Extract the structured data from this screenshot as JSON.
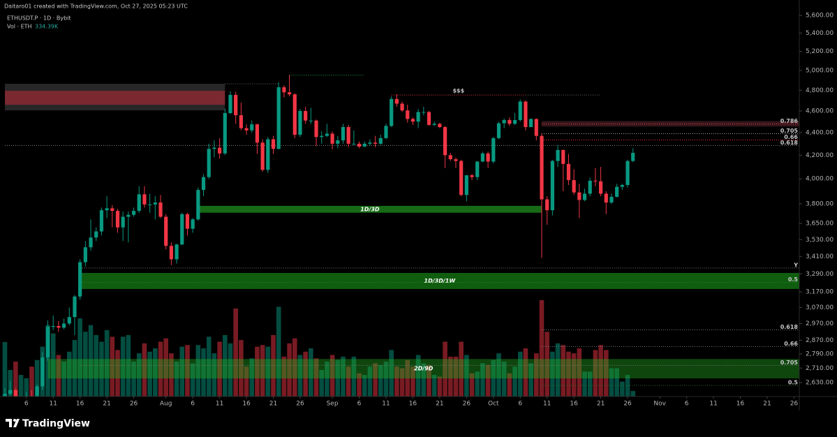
{
  "chart_data": {
    "type": "candlestick",
    "credit": "Daitaro01 created with TradingView.com, Oct 27, 2025 05:23 UTC",
    "symbol": "ETHUSDT.P · 1D · Bybit",
    "logo": "TradingView",
    "up_color": "#089981",
    "down_color": "#f23645",
    "log_scale": true,
    "ylim": [
      2556,
      5780
    ],
    "yticks": [
      {
        "value": 5600,
        "label": "5,600.00"
      },
      {
        "value": 5400,
        "label": "5,400.00"
      },
      {
        "value": 5200,
        "label": "5,200.00"
      },
      {
        "value": 5000,
        "label": "5,000.00"
      },
      {
        "value": 4800,
        "label": "4,800.00"
      },
      {
        "value": 4600,
        "label": "4,600.00"
      },
      {
        "value": 4400,
        "label": "4,400.00"
      },
      {
        "value": 4200,
        "label": "4,200.00"
      },
      {
        "value": 4000,
        "label": "4,000.00"
      },
      {
        "value": 3800,
        "label": "3,800.00"
      },
      {
        "value": 3650,
        "label": "3,650.00"
      },
      {
        "value": 3530,
        "label": "3,530.00"
      },
      {
        "value": 3410,
        "label": "3,410.00"
      },
      {
        "value": 3290,
        "label": "3,290.00"
      },
      {
        "value": 3170,
        "label": "3,170.00"
      },
      {
        "value": 3070,
        "label": "3,070.00"
      },
      {
        "value": 2970,
        "label": "2,970.00"
      },
      {
        "value": 2870,
        "label": "2,870.00"
      },
      {
        "value": 2790,
        "label": "2,790.00"
      },
      {
        "value": 2710,
        "label": "2,710.00"
      },
      {
        "value": 2630,
        "label": "2,630.00"
      }
    ],
    "xticks": [
      {
        "value": "Jul 6",
        "label": "6"
      },
      {
        "value": "Jul 11",
        "label": "11"
      },
      {
        "value": "Jul 16",
        "label": "16"
      },
      {
        "value": "Jul 21",
        "label": "21"
      },
      {
        "value": "Jul 26",
        "label": "26"
      },
      {
        "value": "Aug 1",
        "label": "Aug"
      },
      {
        "value": "Aug 6",
        "label": "6"
      },
      {
        "value": "Aug 11",
        "label": "11"
      },
      {
        "value": "Aug 16",
        "label": "16"
      },
      {
        "value": "Aug 21",
        "label": "21"
      },
      {
        "value": "Aug 26",
        "label": "26"
      },
      {
        "value": "Sep 1",
        "label": "Sep"
      },
      {
        "value": "Sep 6",
        "label": "6"
      },
      {
        "value": "Sep 11",
        "label": "11"
      },
      {
        "value": "Sep 16",
        "label": "16"
      },
      {
        "value": "Sep 21",
        "label": "21"
      },
      {
        "value": "Sep 26",
        "label": "26"
      },
      {
        "value": "Oct 1",
        "label": "Oct"
      },
      {
        "value": "Oct 6",
        "label": "6"
      },
      {
        "value": "Oct 11",
        "label": "11"
      },
      {
        "value": "Oct 16",
        "label": "16"
      },
      {
        "value": "Oct 21",
        "label": "21"
      },
      {
        "value": "Oct 26",
        "label": "26"
      },
      {
        "value": "Nov 1",
        "label": "Nov"
      },
      {
        "value": "Nov 6",
        "label": "6"
      },
      {
        "value": "Nov 11",
        "label": "11"
      },
      {
        "value": "Nov 16",
        "label": "16"
      },
      {
        "value": "Nov 21",
        "label": "21"
      },
      {
        "value": "Nov 26",
        "label": "26"
      }
    ],
    "x": [
      "Jul 2",
      "Jul 3",
      "Jul 4",
      "Jul 5",
      "Jul 6",
      "Jul 7",
      "Jul 8",
      "Jul 9",
      "Jul 10",
      "Jul 11",
      "Jul 12",
      "Jul 13",
      "Jul 14",
      "Jul 15",
      "Jul 16",
      "Jul 17",
      "Jul 18",
      "Jul 19",
      "Jul 20",
      "Jul 21",
      "Jul 22",
      "Jul 23",
      "Jul 24",
      "Jul 25",
      "Jul 26",
      "Jul 27",
      "Jul 28",
      "Jul 29",
      "Jul 30",
      "Jul 31",
      "Aug 1",
      "Aug 2",
      "Aug 3",
      "Aug 4",
      "Aug 5",
      "Aug 6",
      "Aug 7",
      "Aug 8",
      "Aug 9",
      "Aug 10",
      "Aug 11",
      "Aug 12",
      "Aug 13",
      "Aug 14",
      "Aug 15",
      "Aug 16",
      "Aug 17",
      "Aug 18",
      "Aug 19",
      "Aug 20",
      "Aug 21",
      "Aug 22",
      "Aug 23",
      "Aug 24",
      "Aug 25",
      "Aug 26",
      "Aug 27",
      "Aug 28",
      "Aug 29",
      "Aug 30",
      "Aug 31",
      "Sep 1",
      "Sep 2",
      "Sep 3",
      "Sep 4",
      "Sep 5",
      "Sep 6",
      "Sep 7",
      "Sep 8",
      "Sep 9",
      "Sep 10",
      "Sep 11",
      "Sep 12",
      "Sep 13",
      "Sep 14",
      "Sep 15",
      "Sep 16",
      "Sep 17",
      "Sep 18",
      "Sep 19",
      "Sep 20",
      "Sep 21",
      "Sep 22",
      "Sep 23",
      "Sep 24",
      "Sep 25",
      "Sep 26",
      "Sep 27",
      "Sep 28",
      "Sep 29",
      "Sep 30",
      "Oct 1",
      "Oct 2",
      "Oct 3",
      "Oct 4",
      "Oct 5",
      "Oct 6",
      "Oct 7",
      "Oct 8",
      "Oct 9",
      "Oct 10",
      "Oct 11",
      "Oct 12",
      "Oct 13",
      "Oct 14",
      "Oct 15",
      "Oct 16",
      "Oct 17",
      "Oct 18",
      "Oct 19",
      "Oct 20",
      "Oct 21",
      "Oct 22",
      "Oct 23",
      "Oct 24",
      "Oct 25",
      "Oct 26",
      "Oct 27"
    ],
    "ohlc": [
      [
        2410,
        2600,
        2400,
        2570
      ],
      [
        2570,
        2640,
        2560,
        2590
      ],
      [
        2590,
        2600,
        2490,
        2510
      ],
      [
        2510,
        2530,
        2490,
        2515
      ],
      [
        2515,
        2580,
        2495,
        2545
      ],
      [
        2545,
        2590,
        2510,
        2540
      ],
      [
        2540,
        2620,
        2525,
        2610
      ],
      [
        2610,
        2800,
        2590,
        2770
      ],
      [
        2770,
        2990,
        2750,
        2950
      ],
      [
        2950,
        3020,
        2930,
        2955
      ],
      [
        2955,
        2985,
        2920,
        2945
      ],
      [
        2945,
        3000,
        2935,
        2970
      ],
      [
        2970,
        3070,
        2960,
        3010
      ],
      [
        3010,
        3150,
        2900,
        3140
      ],
      [
        3140,
        3390,
        3120,
        3370
      ],
      [
        3370,
        3520,
        3340,
        3475
      ],
      [
        3475,
        3680,
        3450,
        3545
      ],
      [
        3545,
        3620,
        3520,
        3590
      ],
      [
        3590,
        3770,
        3560,
        3750
      ],
      [
        3750,
        3860,
        3690,
        3765
      ],
      [
        3765,
        3790,
        3620,
        3745
      ],
      [
        3745,
        3760,
        3580,
        3620
      ],
      [
        3620,
        3740,
        3520,
        3700
      ],
      [
        3700,
        3740,
        3510,
        3715
      ],
      [
        3715,
        3770,
        3700,
        3745
      ],
      [
        3745,
        3940,
        3730,
        3875
      ],
      [
        3875,
        3940,
        3770,
        3795
      ],
      [
        3795,
        3880,
        3730,
        3795
      ],
      [
        3795,
        3860,
        3680,
        3810
      ],
      [
        3810,
        3870,
        3690,
        3700
      ],
      [
        3700,
        3720,
        3460,
        3485
      ],
      [
        3485,
        3510,
        3350,
        3390
      ],
      [
        3390,
        3500,
        3360,
        3495
      ],
      [
        3495,
        3730,
        3490,
        3720
      ],
      [
        3720,
        3730,
        3560,
        3610
      ],
      [
        3610,
        3690,
        3580,
        3680
      ],
      [
        3680,
        3930,
        3670,
        3910
      ],
      [
        3910,
        4040,
        3860,
        4015
      ],
      [
        4015,
        4300,
        4000,
        4255
      ],
      [
        4255,
        4330,
        4180,
        4265
      ],
      [
        4265,
        4350,
        4170,
        4215
      ],
      [
        4215,
        4620,
        4200,
        4580
      ],
      [
        4580,
        4790,
        4570,
        4755
      ],
      [
        4755,
        4785,
        4480,
        4560
      ],
      [
        4560,
        4680,
        4420,
        4440
      ],
      [
        4440,
        4475,
        4380,
        4420
      ],
      [
        4420,
        4510,
        4400,
        4475
      ],
      [
        4475,
        4480,
        4210,
        4310
      ],
      [
        4310,
        4340,
        4060,
        4075
      ],
      [
        4075,
        4360,
        4050,
        4340
      ],
      [
        4340,
        4370,
        4210,
        4255
      ],
      [
        4255,
        4880,
        4250,
        4830
      ],
      [
        4830,
        4850,
        4730,
        4780
      ],
      [
        4780,
        4955,
        4740,
        4760
      ],
      [
        4760,
        4770,
        4350,
        4380
      ],
      [
        4380,
        4620,
        4360,
        4600
      ],
      [
        4600,
        4640,
        4480,
        4510
      ],
      [
        4510,
        4630,
        4480,
        4510
      ],
      [
        4510,
        4520,
        4280,
        4360
      ],
      [
        4360,
        4410,
        4300,
        4370
      ],
      [
        4370,
        4480,
        4360,
        4390
      ],
      [
        4390,
        4410,
        4250,
        4300
      ],
      [
        4300,
        4370,
        4260,
        4330
      ],
      [
        4330,
        4480,
        4300,
        4450
      ],
      [
        4450,
        4470,
        4270,
        4300
      ],
      [
        4300,
        4420,
        4290,
        4300
      ],
      [
        4300,
        4320,
        4260,
        4275
      ],
      [
        4275,
        4320,
        4270,
        4300
      ],
      [
        4300,
        4340,
        4280,
        4310
      ],
      [
        4310,
        4370,
        4270,
        4300
      ],
      [
        4300,
        4380,
        4290,
        4350
      ],
      [
        4350,
        4480,
        4340,
        4460
      ],
      [
        4460,
        4740,
        4450,
        4715
      ],
      [
        4715,
        4760,
        4640,
        4670
      ],
      [
        4670,
        4690,
        4590,
        4605
      ],
      [
        4605,
        4660,
        4490,
        4525
      ],
      [
        4525,
        4540,
        4470,
        4500
      ],
      [
        4500,
        4620,
        4440,
        4590
      ],
      [
        4590,
        4640,
        4560,
        4590
      ],
      [
        4590,
        4600,
        4460,
        4470
      ],
      [
        4470,
        4500,
        4460,
        4480
      ],
      [
        4480,
        4490,
        4440,
        4450
      ],
      [
        4450,
        4460,
        4090,
        4200
      ],
      [
        4200,
        4220,
        4150,
        4165
      ],
      [
        4165,
        4180,
        4090,
        4150
      ],
      [
        4150,
        4160,
        3860,
        3870
      ],
      [
        3870,
        4030,
        3820,
        4030
      ],
      [
        4030,
        4040,
        3990,
        4015
      ],
      [
        4015,
        4150,
        3990,
        4145
      ],
      [
        4145,
        4230,
        4140,
        4215
      ],
      [
        4215,
        4230,
        4090,
        4145
      ],
      [
        4145,
        4360,
        4130,
        4350
      ],
      [
        4350,
        4500,
        4340,
        4485
      ],
      [
        4485,
        4530,
        4440,
        4515
      ],
      [
        4515,
        4540,
        4460,
        4480
      ],
      [
        4480,
        4580,
        4470,
        4515
      ],
      [
        4515,
        4710,
        4500,
        4690
      ],
      [
        4690,
        4700,
        4420,
        4450
      ],
      [
        4450,
        4530,
        4450,
        4525
      ],
      [
        4525,
        4530,
        4330,
        4370
      ],
      [
        4370,
        4390,
        3400,
        3835
      ],
      [
        3835,
        3860,
        3640,
        3750
      ],
      [
        3750,
        4160,
        3710,
        4150
      ],
      [
        4150,
        4290,
        4100,
        4245
      ],
      [
        4245,
        4250,
        3900,
        4125
      ],
      [
        4125,
        4210,
        3950,
        3990
      ],
      [
        3990,
        4080,
        3870,
        3890
      ],
      [
        3890,
        3960,
        3690,
        3830
      ],
      [
        3830,
        3920,
        3820,
        3880
      ],
      [
        3880,
        4010,
        3860,
        3985
      ],
      [
        3985,
        4090,
        3940,
        3980
      ],
      [
        3980,
        4100,
        3860,
        3880
      ],
      [
        3880,
        3900,
        3720,
        3810
      ],
      [
        3810,
        3880,
        3800,
        3855
      ],
      [
        3855,
        3960,
        3850,
        3935
      ],
      [
        3935,
        3960,
        3910,
        3950
      ],
      [
        3950,
        4160,
        3930,
        4150
      ],
      [
        4150,
        4260,
        4140,
        4220
      ]
    ],
    "volume": {
      "name": "Vol · ETH",
      "last_label": "334.39K",
      "values": [
        3280000,
        1600000,
        2100000,
        1300000,
        1100000,
        1800000,
        2200000,
        3000000,
        4300000,
        3800000,
        2500000,
        2100000,
        2700000,
        3400000,
        4700000,
        3900000,
        4300000,
        3700000,
        3300000,
        4000000,
        3600000,
        2800000,
        3600000,
        3700000,
        2100000,
        2600000,
        3200000,
        2700000,
        2900000,
        3300000,
        3500000,
        2600000,
        2100000,
        3000000,
        3100000,
        2000000,
        3100000,
        2900000,
        3600000,
        2600000,
        3300000,
        3700000,
        3200000,
        5300000,
        3400000,
        1800000,
        2300000,
        3000000,
        3100000,
        3000000,
        3700000,
        5400000,
        2400000,
        3200000,
        3500000,
        2500000,
        2700000,
        2900000,
        2300000,
        1600000,
        2100000,
        2500000,
        2200000,
        2400000,
        1800000,
        2400000,
        1400000,
        1300000,
        1800000,
        2000000,
        1900000,
        2100000,
        2800000,
        1800000,
        1700000,
        2200000,
        1800000,
        2500000,
        2000000,
        1900000,
        1300000,
        1200000,
        3300000,
        2400000,
        2400000,
        3300000,
        2500000,
        1400000,
        1500000,
        2000000,
        1900000,
        2200000,
        2600000,
        2100000,
        1400000,
        1800000,
        2700000,
        2900000,
        2000000,
        2600000,
        5800000,
        3900000,
        2700000,
        3200000,
        3100000,
        2700000,
        2600000,
        2900000,
        1500000,
        1500000,
        2800000,
        3100000,
        2800000,
        1700000,
        1700000,
        900000,
        1300000,
        334390
      ]
    },
    "zones": [
      {
        "top": 4865,
        "bottom": 4606,
        "from": "Jul 2",
        "to": "Aug 12",
        "color": "#2b2b2b",
        "opacity": 0.9
      },
      {
        "top": 4795,
        "bottom": 4659,
        "from": "Jul 2",
        "to": "Aug 12",
        "color": "#8a2a32",
        "opacity": 0.85
      },
      {
        "top": 4505,
        "bottom": 4455,
        "from": "Oct 10",
        "to": "Nov 27",
        "color": "#3a1a1e",
        "opacity": 0.9
      },
      {
        "label": "1D/3D",
        "top": 3784,
        "bottom": 3731,
        "from": "Aug 7",
        "to": "Oct 10",
        "color": "#1f8f1f",
        "opacity": 0.75
      },
      {
        "label": "1D/3D/1W",
        "top": 3296,
        "bottom": 3189,
        "from": "Jul 16",
        "to": "Nov 27",
        "color": "#178517",
        "opacity": 0.7
      },
      {
        "label": "2D/9D",
        "top": 2761,
        "bottom": 2653,
        "from": "Jul 10",
        "to": "Nov 27",
        "color": "#22b022",
        "opacity": 0.4
      }
    ],
    "levels": [
      {
        "label": "0.786",
        "value": 4479,
        "from": "Oct 10",
        "color": "#f23645",
        "label_color": "#ffffff"
      },
      {
        "label": "0.705",
        "value": 4390,
        "from": "Oct 10",
        "color": "#aaaaaa",
        "label_color": "#ffffff"
      },
      {
        "label": "0.66",
        "value": 4334,
        "from": "Oct 10",
        "color": "#f23645",
        "label_color": "#ffffff"
      },
      {
        "label": "0.618",
        "value": 4285,
        "from": "Jul 2",
        "color": "#888888",
        "label_color": "#ffffff"
      },
      {
        "label": "Y",
        "value": 3330,
        "from": "Jul 16",
        "color": "#777777",
        "label_color": "#dddddd"
      },
      {
        "label": "0.5",
        "value": 3232,
        "from": "Jul 16",
        "color": "#1f8f1f",
        "label_color": "#3ecf3e"
      },
      {
        "label": "0.618",
        "value": 2932,
        "from": "Oct 10",
        "color": "#777777",
        "label_color": "#cccccc"
      },
      {
        "label": "0.66",
        "value": 2833,
        "from": "Oct 10",
        "color": "#777777",
        "label_color": "#cccccc"
      },
      {
        "label": "0.705",
        "value": 2725,
        "from": "Jul 16",
        "color": "#777777",
        "label_color": "#cccccc"
      },
      {
        "label": "0.5",
        "value": 2615,
        "from": "Oct 10",
        "color": "#2a6a2a",
        "label_color": "#3ecf3e"
      },
      {
        "label": "$$$",
        "value": 4753,
        "from": "Sep 12",
        "to": "Oct 7",
        "color": "#f23645",
        "label_color": "#ffffff"
      },
      {
        "value": 4753,
        "from": "Oct 7",
        "to": "Oct 21",
        "color": "#666666"
      },
      {
        "value": 4952,
        "from": "Aug 24",
        "to": "Sep 7",
        "color": "#1fa040"
      },
      {
        "value": 4865,
        "from": "Aug 12",
        "to": "Aug 22",
        "color": "#666666"
      }
    ]
  }
}
